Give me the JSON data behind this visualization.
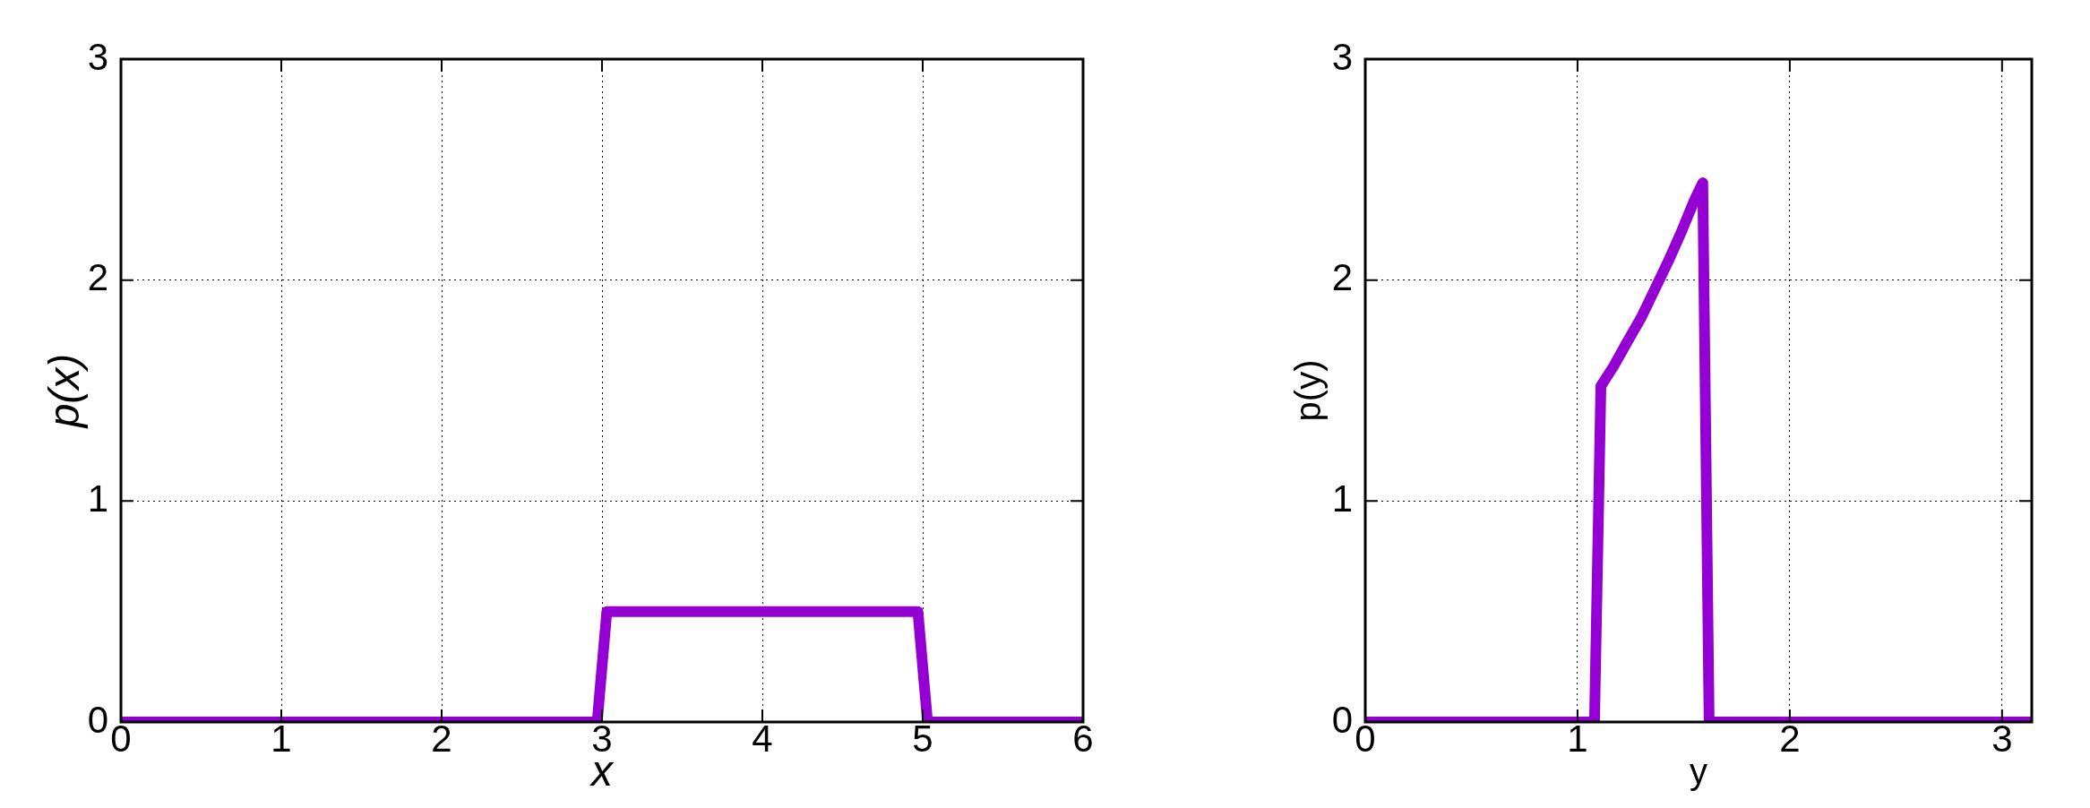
{
  "chart_data": [
    {
      "type": "line",
      "xlabel": "x",
      "ylabel": "p(x)",
      "x": [
        0,
        2.97,
        3.03,
        4.97,
        5.03,
        6
      ],
      "series": [
        {
          "color": "#9400d3",
          "values": [
            0,
            0,
            0.5,
            0.5,
            0,
            0
          ]
        }
      ],
      "xlim": [
        0,
        6
      ],
      "ylim": [
        0,
        3
      ],
      "xticks": [
        0,
        1,
        2,
        3,
        4,
        5,
        6
      ],
      "yticks": [
        0,
        1,
        2,
        3
      ],
      "grid": true
    },
    {
      "type": "line",
      "xlabel": "y",
      "ylabel": "p(y)",
      "x": [
        0,
        1.08,
        1.11,
        1.17,
        1.24,
        1.3,
        1.36,
        1.43,
        1.49,
        1.55,
        1.59,
        1.62,
        3.14
      ],
      "series": [
        {
          "color": "#9400d3",
          "values": [
            0,
            0,
            1.52,
            1.61,
            1.73,
            1.83,
            1.95,
            2.09,
            2.22,
            2.36,
            2.44,
            0,
            0
          ]
        }
      ],
      "xlim": [
        0,
        3.14
      ],
      "ylim": [
        0,
        3
      ],
      "xticks": [
        0,
        1,
        2,
        3
      ],
      "yticks": [
        0,
        1,
        2,
        3
      ],
      "grid": true
    }
  ]
}
